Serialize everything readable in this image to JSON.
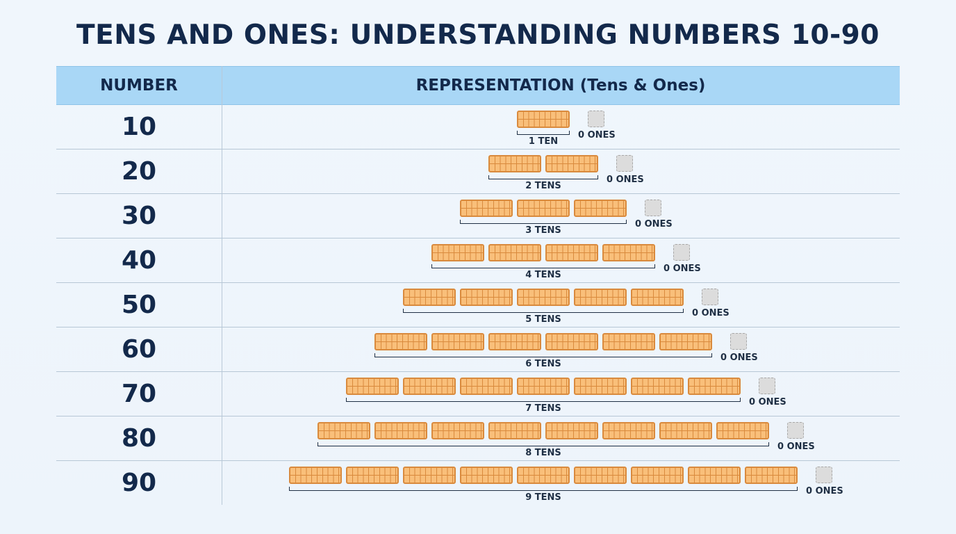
{
  "title": "TENS AND ONES: UNDERSTANDING NUMBERS 10-90",
  "header": {
    "number": "NUMBER",
    "representation": "REPRESENTATION (Tens & Ones)"
  },
  "colors": {
    "rod_fill": "#f9bf7a",
    "rod_border": "#d98a3d",
    "header_bg": "#a9d7f6",
    "text": "#13294b",
    "ones_box": "#dcdcdc"
  },
  "rows": [
    {
      "number": "10",
      "tens": 1,
      "ones": 0,
      "tens_label": "1 TEN",
      "ones_label": "0 ONES"
    },
    {
      "number": "20",
      "tens": 2,
      "ones": 0,
      "tens_label": "2 TENS",
      "ones_label": "0 ONES"
    },
    {
      "number": "30",
      "tens": 3,
      "ones": 0,
      "tens_label": "3 TENS",
      "ones_label": "0 ONES"
    },
    {
      "number": "40",
      "tens": 4,
      "ones": 0,
      "tens_label": "4 TENS",
      "ones_label": "0 ONES"
    },
    {
      "number": "50",
      "tens": 5,
      "ones": 0,
      "tens_label": "5 TENS",
      "ones_label": "0 ONES"
    },
    {
      "number": "60",
      "tens": 6,
      "ones": 0,
      "tens_label": "6 TENS",
      "ones_label": "0 ONES"
    },
    {
      "number": "70",
      "tens": 7,
      "ones": 0,
      "tens_label": "7 TENS",
      "ones_label": "0 ONES"
    },
    {
      "number": "80",
      "tens": 8,
      "ones": 0,
      "tens_label": "8 TENS",
      "ones_label": "0 ONES"
    },
    {
      "number": "90",
      "tens": 9,
      "ones": 0,
      "tens_label": "9 TENS",
      "ones_label": "0 ONES"
    }
  ]
}
